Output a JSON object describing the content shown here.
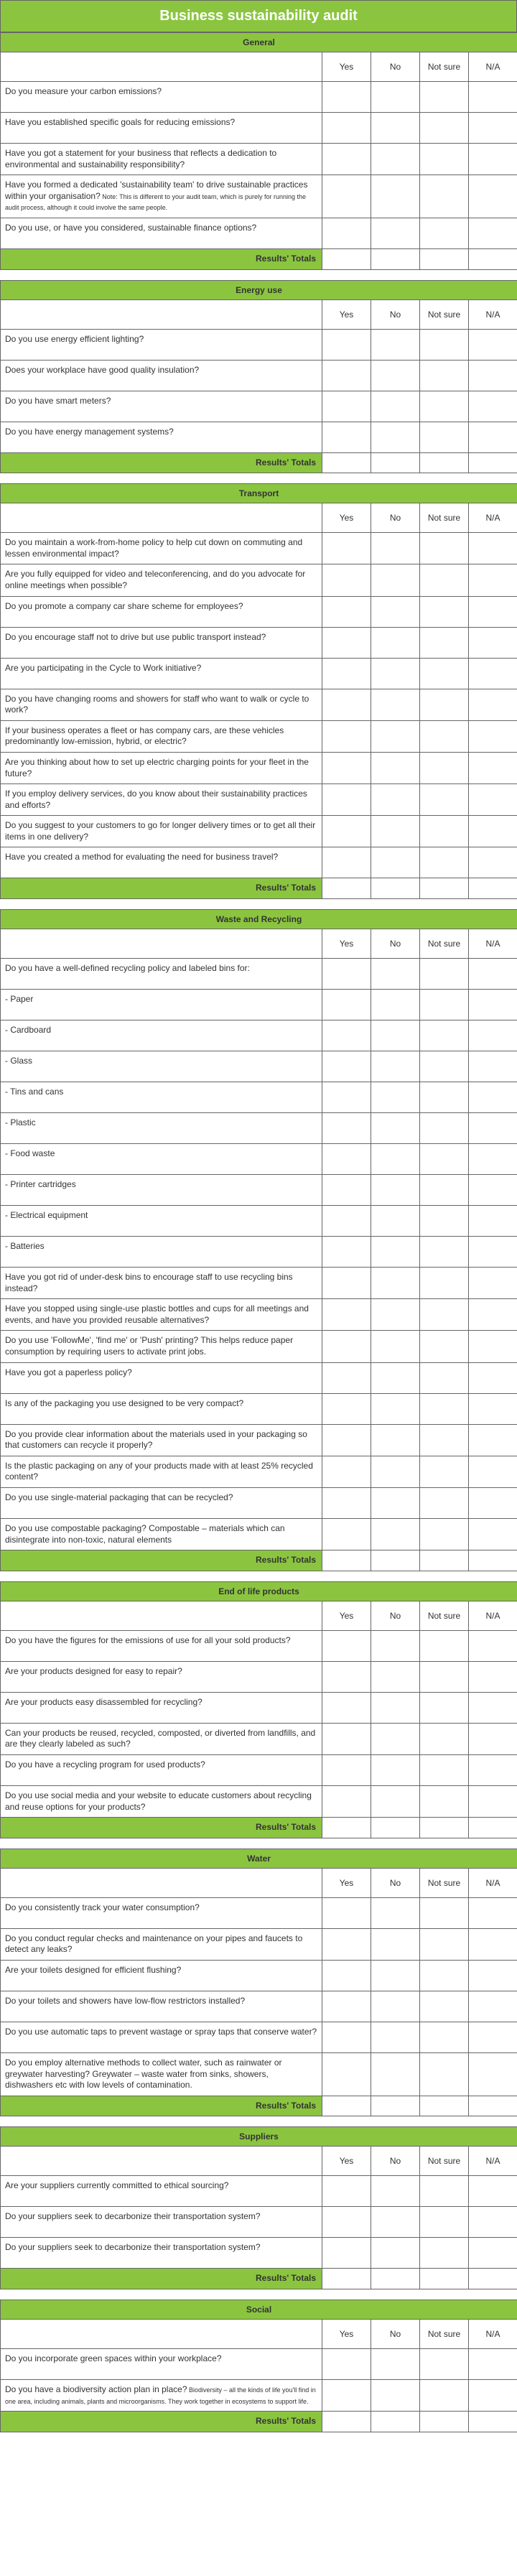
{
  "title": "Business sustainability audit",
  "columns": [
    "Yes",
    "No",
    "Not sure",
    "N/A"
  ],
  "totals_label": "Results' Totals",
  "col_widths": {
    "question": 448,
    "answer": 68
  },
  "colors": {
    "accent": "#8bc540",
    "border": "#666666",
    "text": "#333333",
    "title_text": "#ffffff"
  },
  "sections": [
    {
      "name": "General",
      "questions": [
        {
          "text": "Do you measure your carbon emissions?"
        },
        {
          "text": "Have you established specific goals for reducing emissions?"
        },
        {
          "text": "Have you got a statement for your business that reflects a dedication to environmental and sustainability responsibility?"
        },
        {
          "text": "Have you formed a dedicated 'sustainability team' to drive sustainable practices within your organisation?",
          "note": " Note: This is different to your audit team, which is purely for running the audit process, although it could involve the same people."
        },
        {
          "text": "Do you use, or have you considered, sustainable finance options?"
        }
      ]
    },
    {
      "name": "Energy use",
      "questions": [
        {
          "text": "Do you use energy efficient lighting?"
        },
        {
          "text": "Does your workplace have good quality insulation?"
        },
        {
          "text": "Do you have smart meters?"
        },
        {
          "text": "Do you have energy management systems?"
        }
      ]
    },
    {
      "name": "Transport",
      "questions": [
        {
          "text": "Do you maintain a work-from-home policy to help cut down on commuting and lessen environmental impact?"
        },
        {
          "text": "Are you fully equipped for video and teleconferencing, and do you advocate for online meetings when possible?"
        },
        {
          "text": "Do you promote a company car share scheme for employees?"
        },
        {
          "text": "Do you encourage staff not to drive but use public transport instead?"
        },
        {
          "text": "Are you participating in the Cycle to Work initiative?"
        },
        {
          "text": "Do you have changing rooms and showers for staff who want to walk or cycle to work?"
        },
        {
          "text": "If your business operates a fleet or has company cars, are these vehicles predominantly low-emission, hybrid, or electric?"
        },
        {
          "text": "Are you thinking about how to set up electric charging points for your fleet in the future?"
        },
        {
          "text": "If you employ delivery services, do you know about their sustainability practices and efforts?"
        },
        {
          "text": "Do you suggest to your customers to go for longer delivery times or to get all their items in one delivery?"
        },
        {
          "text": "Have you created a method for evaluating the need for business travel?"
        }
      ]
    },
    {
      "name": "Waste and Recycling",
      "questions": [
        {
          "text": "Do you have a well-defined recycling policy and labeled bins for:"
        },
        {
          "text": "- Paper"
        },
        {
          "text": "- Cardboard"
        },
        {
          "text": "- Glass"
        },
        {
          "text": "- Tins and cans"
        },
        {
          "text": "- Plastic"
        },
        {
          "text": "- Food waste"
        },
        {
          "text": "- Printer cartridges"
        },
        {
          "text": "- Electrical equipment"
        },
        {
          "text": "- Batteries"
        },
        {
          "text": "Have you got rid of under-desk bins to encourage staff to use recycling bins instead?"
        },
        {
          "text": "Have you stopped using single-use plastic bottles and cups for all meetings and events, and have you provided reusable alternatives?"
        },
        {
          "text": "Do you use 'FollowMe', 'find me' or 'Push' printing? This helps reduce paper consumption by requiring users to activate print jobs."
        },
        {
          "text": "Have you got a paperless policy?"
        },
        {
          "text": "Is any of the packaging you use designed to be very compact?"
        },
        {
          "text": "Do you provide clear information about the materials used in your packaging so that customers can recycle it properly?"
        },
        {
          "text": "Is the plastic packaging on any of your products made with at least 25% recycled content?"
        },
        {
          "text": "Do you use single-material packaging that can be recycled?"
        },
        {
          "text": "Do you use compostable packaging? Compostable – materials which can disintegrate into non-toxic, natural elements"
        }
      ]
    },
    {
      "name": "End of life products",
      "questions": [
        {
          "text": "Do you have the figures for the emissions of use for all your sold products?"
        },
        {
          "text": "Are your products designed for easy to repair?"
        },
        {
          "text": "Are your products easy disassembled for recycling?"
        },
        {
          "text": "Can your products be reused, recycled, composted, or diverted from landfills, and are they clearly labeled as such?"
        },
        {
          "text": "Do you have a recycling program for used products?"
        },
        {
          "text": "Do you use social media and your website to educate customers about recycling and reuse options for your products?"
        }
      ]
    },
    {
      "name": "Water",
      "questions": [
        {
          "text": "Do you consistently track your water consumption?"
        },
        {
          "text": "Do you conduct regular checks and maintenance on your pipes and faucets to detect any leaks?"
        },
        {
          "text": "Are your toilets designed for efficient flushing?"
        },
        {
          "text": "Do your toilets and showers have low-flow restrictors installed?"
        },
        {
          "text": "Do you use automatic taps to prevent wastage or spray taps that conserve water?"
        },
        {
          "text": "Do you employ alternative methods to collect water, such as rainwater or greywater harvesting? Greywater – waste water from sinks, showers, dishwashers etc with low levels of contamination."
        }
      ]
    },
    {
      "name": "Suppliers",
      "questions": [
        {
          "text": "Are your suppliers currently committed to ethical sourcing?"
        },
        {
          "text": "Do your suppliers seek to decarbonize their transportation system?"
        },
        {
          "text": "Do your suppliers seek to decarbonize their transportation system?"
        }
      ]
    },
    {
      "name": "Social",
      "questions": [
        {
          "text": "Do you incorporate green spaces within your workplace?"
        },
        {
          "text": "Do you have a biodiversity action plan in place?",
          "note": " Biodiversity – all the kinds of life you'll find in one area, including animals, plants and microorganisms. They work together in ecosystems to support life."
        }
      ]
    }
  ]
}
